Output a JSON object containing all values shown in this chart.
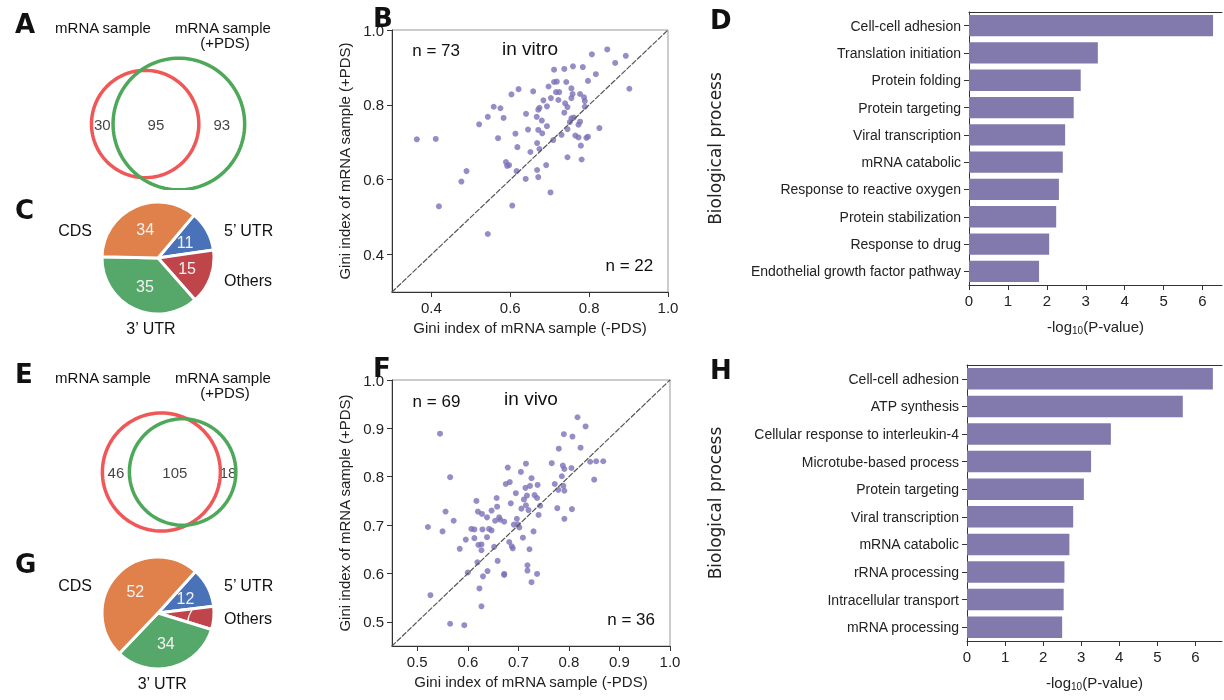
{
  "chart_data": [
    {
      "type": "other",
      "title": "A",
      "categories": [
        "mRNA sample",
        null,
        "mRNA sample (+PDS)"
      ],
      "values": [
        30,
        95,
        93
      ],
      "colors": [
        "#f05858",
        null,
        "#4ea85a"
      ],
      "data_labels": true
    },
    {
      "type": "scatter",
      "title": "B",
      "xlabel": "Gini index of mRNA sample (-PDS)",
      "ylabel": "Gini index of mRNA sample (+PDS)",
      "xlim": [
        0.3,
        1.0
      ],
      "ylim": [
        0.3,
        1.0
      ],
      "xticks": [
        0.4,
        0.6,
        0.8,
        {
          "value": 1,
          "label": "1.0"
        }
      ],
      "yticks": [
        0.4,
        0.6,
        0.8,
        {
          "value": 1,
          "label": "1.0"
        }
      ],
      "marker": "circle",
      "annotations": [
        "n = 73",
        "in vitro",
        "n = 22"
      ],
      "series": [
        {
          "color": "#7b70b8",
          "x": [
            0.363,
            0.411,
            0.419,
            0.476,
            0.489,
            0.543,
            0.521,
            0.543,
            0.558,
            0.575,
            0.583,
            0.569,
            0.603,
            0.621,
            0.658,
            0.613,
            0.618,
            0.589,
            0.592,
            0.597,
            0.616,
            0.605,
            0.64,
            0.645,
            0.639,
            0.651,
            0.668,
            0.668,
            0.671,
            0.691,
            0.702,
            0.671,
            0.681,
            0.693,
            0.667,
            0.671,
            0.674,
            0.684,
            0.693,
            0.68,
            0.674,
            0.697,
            0.711,
            0.718,
            0.711,
            0.737,
            0.759,
            0.784,
            0.703,
            0.716,
            0.724,
            0.722,
            0.739,
            0.745,
            0.742,
            0.755,
            0.758,
            0.777,
            0.787,
            0.789,
            0.755,
            0.737,
            0.755,
            0.761,
            0.751,
            0.745,
            0.73,
            0.709,
            0.773,
            0.777,
            0.765,
            0.773,
            0.779,
            0.781,
            0.745,
            0.793,
            0.797,
            0.826,
            0.789,
            0.797,
            0.817,
            0.807,
            0.846,
            0.866,
            0.893,
            0.902
          ],
          "values": [
            0.708,
            0.709,
            0.529,
            0.595,
            0.623,
            0.455,
            0.748,
            0.768,
            0.795,
            0.791,
            0.765,
            0.711,
            0.828,
            0.842,
            0.836,
            0.723,
            0.687,
            0.647,
            0.637,
            0.639,
            0.623,
            0.531,
            0.776,
            0.734,
            0.602,
            0.674,
            0.698,
            0.626,
            0.607,
            0.639,
            0.566,
            0.733,
            0.724,
            0.743,
            0.768,
            0.787,
            0.792,
            0.812,
            0.796,
            0.758,
            0.682,
            0.849,
            0.861,
            0.862,
            0.894,
            0.896,
            0.903,
            0.901,
            0.818,
            0.834,
            0.834,
            0.813,
            0.804,
            0.794,
            0.861,
            0.844,
            0.829,
            0.829,
            0.82,
            0.81,
            0.818,
            0.779,
            0.764,
            0.766,
            0.754,
            0.735,
            0.72,
            0.706,
            0.747,
            0.755,
            0.718,
            0.713,
            0.691,
            0.654,
            0.66,
            0.712,
            0.715,
            0.738,
            0.795,
            0.864,
            0.882,
            0.935,
            0.948,
            0.912,
            0.931,
            0.843
          ]
        },
        {
          "type": "line",
          "color": "#555555",
          "line_style": "dashed",
          "marker": "none",
          "x": [
            0.3,
            1.0
          ],
          "values": [
            0.3,
            1.0
          ]
        }
      ]
    },
    {
      "type": "pie",
      "title": "C",
      "categories": [
        "5’ UTR",
        "Others",
        "3’ UTR",
        "CDS"
      ],
      "values": [
        11,
        15,
        35,
        34
      ],
      "colors": [
        "#4a72b8",
        "#c0454a",
        "#55a86a",
        "#e0804a"
      ],
      "data_labels": true
    },
    {
      "type": "bar",
      "title": "D",
      "orientation": "horizontal",
      "xlabel": "-log$_{10}$(P-value)",
      "ylabel": "Biological process",
      "color": "#8279ad",
      "xlim": [
        0,
        6.5
      ],
      "xticks": [
        0,
        1,
        2,
        3,
        4,
        5,
        6
      ],
      "categories": [
        "Cell-cell adhesion",
        "Translation initiation",
        "Protein folding",
        "Protein targeting",
        "Viral transcription",
        "mRNA catabolic",
        "Response to reactive oxygen",
        "Protein stabilization",
        "Response to drug",
        "Endothelial growth factor pathway"
      ],
      "values": [
        6.27,
        3.31,
        2.87,
        2.69,
        2.47,
        2.41,
        2.31,
        2.24,
        2.06,
        1.8
      ]
    },
    {
      "type": "other",
      "title": "E",
      "categories": [
        "mRNA sample",
        null,
        "mRNA sample (+PDS)"
      ],
      "values": [
        46,
        105,
        18
      ],
      "colors": [
        "#f05858",
        null,
        "#4ea85a"
      ],
      "data_labels": true
    },
    {
      "type": "scatter",
      "title": "F",
      "xlabel": "Gini index of mRNA sample (-PDS)",
      "ylabel": "Gini index of mRNA sample (+PDS)",
      "xlim": [
        0.45,
        1.0
      ],
      "ylim": [
        0.45,
        1.0
      ],
      "xticks": [
        0.5,
        0.6,
        0.7,
        0.8,
        0.9,
        {
          "value": 1,
          "label": "1.0"
        }
      ],
      "yticks": [
        0.5,
        0.6,
        0.7,
        0.8,
        0.9,
        {
          "value": 1,
          "label": "1.0"
        }
      ],
      "marker": "circle",
      "annotations": [
        "n = 69",
        "in vivo",
        "n = 36"
      ],
      "series": [
        {
          "color": "#7b70b8",
          "x": [
            0.545,
            0.521,
            0.526,
            0.55,
            0.556,
            0.565,
            0.572,
            0.565,
            0.593,
            0.584,
            0.596,
            0.6,
            0.607,
            0.613,
            0.613,
            0.617,
            0.62,
            0.621,
            0.627,
            0.627,
            0.619,
            0.623,
            0.627,
            0.63,
            0.629,
            0.628,
            0.638,
            0.638,
            0.639,
            0.642,
            0.647,
            0.647,
            0.652,
            0.654,
            0.658,
            0.657,
            0.659,
            0.662,
            0.664,
            0.672,
            0.672,
            0.672,
            0.675,
            0.679,
            0.683,
            0.682,
            0.687,
            0.689,
            0.685,
            0.695,
            0.697,
            0.691,
            0.699,
            0.702,
            0.706,
            0.705,
            0.709,
            0.711,
            0.715,
            0.714,
            0.717,
            0.715,
            0.72,
            0.726,
            0.723,
            0.722,
            0.718,
            0.718,
            0.726,
            0.737,
            0.73,
            0.732,
            0.738,
            0.737,
            0.74,
            0.743,
            0.766,
            0.772,
            0.777,
            0.78,
            0.779,
            0.786,
            0.788,
            0.789,
            0.79,
            0.791,
            0.791,
            0.791,
            0.805,
            0.806,
            0.807,
            0.817,
            0.823,
            0.833,
            0.842,
            0.85,
            0.854,
            0.868
          ],
          "values": [
            0.889,
            0.696,
            0.555,
            0.687,
            0.728,
            0.799,
            0.709,
            0.496,
            0.493,
            0.651,
            0.67,
            0.602,
            0.692,
            0.691,
            0.673,
            0.75,
            0.728,
            0.659,
            0.66,
            0.648,
            0.623,
            0.569,
            0.532,
            0.594,
            0.691,
            0.723,
            0.716,
            0.675,
            0.605,
            0.692,
            0.689,
            0.73,
            0.655,
            0.709,
            0.738,
            0.756,
            0.626,
            0.716,
            0.711,
            0.707,
            0.599,
            0.597,
            0.785,
            0.819,
            0.789,
            0.665,
            0.656,
            0.652,
            0.745,
            0.766,
            0.713,
            0.701,
            0.701,
            0.695,
            0.734,
            0.81,
            0.674,
            0.753,
            0.827,
            0.777,
            0.761,
            0.741,
            0.731,
            0.797,
            0.781,
            0.65,
            0.617,
            0.606,
            0.582,
            0.599,
            0.687,
            0.762,
            0.783,
            0.756,
            0.721,
            0.74,
            0.828,
            0.785,
            0.735,
            0.858,
            0.773,
            0.801,
            0.823,
            0.781,
            0.888,
            0.816,
            0.771,
            0.713,
            0.818,
            0.733,
            0.883,
            0.923,
            0.86,
            0.904,
            0.831,
            0.794,
            0.832,
            0.832
          ]
        },
        {
          "type": "line",
          "color": "#555555",
          "line_style": "dashed",
          "marker": "none",
          "x": [
            0.45,
            1.0
          ],
          "values": [
            0.45,
            1.0
          ]
        }
      ]
    },
    {
      "type": "pie",
      "title": "G",
      "categories": [
        "5’ UTR",
        "Others",
        "3’ UTR",
        "CDS"
      ],
      "values": [
        12,
        7,
        34,
        52
      ],
      "colors": [
        "#4a72b8",
        "#c0454a",
        "#55a86a",
        "#e0804a"
      ],
      "data_labels": true
    },
    {
      "type": "bar",
      "title": "H",
      "orientation": "horizontal",
      "xlabel": "-log$_{10}$(P-value)",
      "ylabel": "Biological process",
      "color": "#8279ad",
      "xlim": [
        0,
        6.7
      ],
      "xticks": [
        0,
        1,
        2,
        3,
        4,
        5,
        6
      ],
      "categories": [
        "Cell-cell adhesion",
        "ATP synthesis",
        "Cellular response to interleukin-4",
        "Microtube-based process",
        "Protein targeting",
        "Viral transcription",
        "mRNA catabolic",
        "rRNA processing",
        "Intracellular transport",
        "mRNA processing"
      ],
      "values": [
        6.46,
        5.67,
        3.78,
        3.26,
        3.07,
        2.79,
        2.69,
        2.56,
        2.54,
        2.5
      ]
    }
  ]
}
